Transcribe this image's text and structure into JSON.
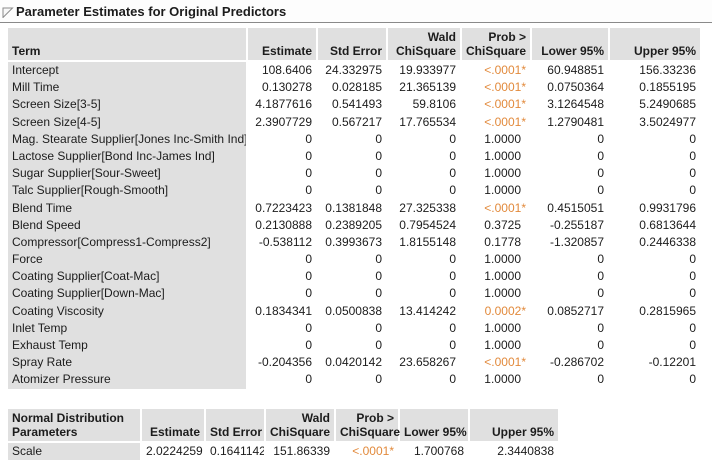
{
  "title": "Parameter Estimates for Original Predictors",
  "icons": {
    "disclosure": "disclosure-triangle-open"
  },
  "colors": {
    "significant_value": "#e28a3c",
    "header_cell_gray": "#e0e0e0",
    "title_rule_gray": "#8a8a8a"
  },
  "main_table": {
    "header_line1": [
      "",
      "",
      "",
      "Wald",
      "Prob >",
      "",
      ""
    ],
    "header_line2": [
      "Term",
      "Estimate",
      "Std Error",
      "ChiSquare",
      "ChiSquare",
      "Lower 95%",
      "Upper 95%"
    ],
    "rows": [
      {
        "term": "Intercept",
        "estimate": "108.6406",
        "std_error": "24.332975",
        "wald": "19.933977",
        "prob": "<.0001*",
        "sig": true,
        "lower": "60.948851",
        "upper": "156.33236"
      },
      {
        "term": "Mill Time",
        "estimate": "0.130278",
        "std_error": "0.028185",
        "wald": "21.365139",
        "prob": "<.0001*",
        "sig": true,
        "lower": "0.0750364",
        "upper": "0.1855195"
      },
      {
        "term": "Screen Size[3-5]",
        "estimate": "4.1877616",
        "std_error": "0.541493",
        "wald": "59.8106",
        "prob": "<.0001*",
        "sig": true,
        "lower": "3.1264548",
        "upper": "5.2490685"
      },
      {
        "term": "Screen Size[4-5]",
        "estimate": "2.3907729",
        "std_error": "0.567217",
        "wald": "17.765534",
        "prob": "<.0001*",
        "sig": true,
        "lower": "1.2790481",
        "upper": "3.5024977"
      },
      {
        "term": "Mag. Stearate Supplier[Jones Inc-Smith Ind]",
        "estimate": "0",
        "std_error": "0",
        "wald": "0",
        "prob": "1.0000",
        "sig": false,
        "lower": "0",
        "upper": "0"
      },
      {
        "term": "Lactose Supplier[Bond Inc-James Ind]",
        "estimate": "0",
        "std_error": "0",
        "wald": "0",
        "prob": "1.0000",
        "sig": false,
        "lower": "0",
        "upper": "0"
      },
      {
        "term": "Sugar Supplier[Sour-Sweet]",
        "estimate": "0",
        "std_error": "0",
        "wald": "0",
        "prob": "1.0000",
        "sig": false,
        "lower": "0",
        "upper": "0"
      },
      {
        "term": "Talc Supplier[Rough-Smooth]",
        "estimate": "0",
        "std_error": "0",
        "wald": "0",
        "prob": "1.0000",
        "sig": false,
        "lower": "0",
        "upper": "0"
      },
      {
        "term": "Blend Time",
        "estimate": "0.7223423",
        "std_error": "0.1381848",
        "wald": "27.325338",
        "prob": "<.0001*",
        "sig": true,
        "lower": "0.4515051",
        "upper": "0.9931796"
      },
      {
        "term": "Blend Speed",
        "estimate": "0.2130888",
        "std_error": "0.2389205",
        "wald": "0.7954524",
        "prob": "0.3725",
        "sig": false,
        "lower": "-0.255187",
        "upper": "0.6813644"
      },
      {
        "term": "Compressor[Compress1-Compress2]",
        "estimate": "-0.538112",
        "std_error": "0.3993673",
        "wald": "1.8155148",
        "prob": "0.1778",
        "sig": false,
        "lower": "-1.320857",
        "upper": "0.2446338"
      },
      {
        "term": "Force",
        "estimate": "0",
        "std_error": "0",
        "wald": "0",
        "prob": "1.0000",
        "sig": false,
        "lower": "0",
        "upper": "0"
      },
      {
        "term": "Coating Supplier[Coat-Mac]",
        "estimate": "0",
        "std_error": "0",
        "wald": "0",
        "prob": "1.0000",
        "sig": false,
        "lower": "0",
        "upper": "0"
      },
      {
        "term": "Coating Supplier[Down-Mac]",
        "estimate": "0",
        "std_error": "0",
        "wald": "0",
        "prob": "1.0000",
        "sig": false,
        "lower": "0",
        "upper": "0"
      },
      {
        "term": "Coating Viscosity",
        "estimate": "0.1834341",
        "std_error": "0.0500838",
        "wald": "13.414242",
        "prob": "0.0002*",
        "sig": true,
        "lower": "0.0852717",
        "upper": "0.2815965"
      },
      {
        "term": "Inlet Temp",
        "estimate": "0",
        "std_error": "0",
        "wald": "0",
        "prob": "1.0000",
        "sig": false,
        "lower": "0",
        "upper": "0"
      },
      {
        "term": "Exhaust Temp",
        "estimate": "0",
        "std_error": "0",
        "wald": "0",
        "prob": "1.0000",
        "sig": false,
        "lower": "0",
        "upper": "0"
      },
      {
        "term": "Spray Rate",
        "estimate": "-0.204356",
        "std_error": "0.0420142",
        "wald": "23.658267",
        "prob": "<.0001*",
        "sig": true,
        "lower": "-0.286702",
        "upper": "-0.12201"
      },
      {
        "term": "Atomizer Pressure",
        "estimate": "0",
        "std_error": "0",
        "wald": "0",
        "prob": "1.0000",
        "sig": false,
        "lower": "0",
        "upper": "0"
      }
    ]
  },
  "scale_table": {
    "header_line1": [
      "Normal Distribution",
      "",
      "",
      "Wald",
      "Prob >",
      "",
      ""
    ],
    "header_line2": [
      "Parameters",
      "Estimate",
      "Std Error",
      "ChiSquare",
      "ChiSquare",
      "Lower 95%",
      "Upper 95%"
    ],
    "rows": [
      {
        "term": "Scale",
        "estimate": "2.0224259",
        "std_error": "0.1641142",
        "wald": "151.86339",
        "prob": "<.0001*",
        "sig": true,
        "lower": "1.700768",
        "upper": "2.3440838"
      }
    ]
  }
}
